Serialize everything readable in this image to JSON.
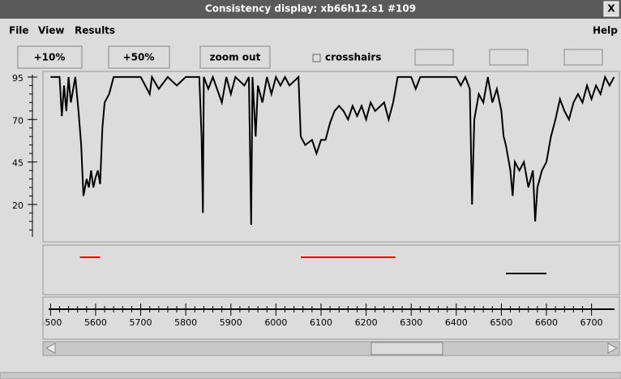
{
  "window": {
    "title": "Consistency display: xb66h12.s1 #109",
    "close": "X"
  },
  "menu": {
    "items": [
      "File",
      "View",
      "Results"
    ],
    "help": "Help"
  },
  "toolbar": {
    "buttons": [
      "+10%",
      "+50%",
      "zoom out"
    ],
    "checkbox": "crosshairs"
  },
  "chart_data": {
    "type": "line",
    "color": "#000000",
    "x": [
      5500,
      5520,
      5525,
      5530,
      5535,
      5540,
      5545,
      5555,
      5562,
      5568,
      5573,
      5580,
      5585,
      5590,
      5595,
      5600,
      5605,
      5610,
      5615,
      5620,
      5630,
      5640,
      5650,
      5700,
      5720,
      5725,
      5740,
      5760,
      5780,
      5800,
      5830,
      5835,
      5838,
      5840,
      5850,
      5860,
      5880,
      5890,
      5900,
      5910,
      5930,
      5940,
      5945,
      5948,
      5955,
      5960,
      5970,
      5980,
      5990,
      6000,
      6010,
      6020,
      6030,
      6050,
      6055,
      6065,
      6080,
      6090,
      6100,
      6110,
      6120,
      6130,
      6140,
      6150,
      6160,
      6170,
      6180,
      6190,
      6200,
      6210,
      6220,
      6240,
      6250,
      6260,
      6270,
      6300,
      6310,
      6320,
      6400,
      6410,
      6420,
      6430,
      6435,
      6440,
      6450,
      6460,
      6470,
      6480,
      6490,
      6500,
      6505,
      6510,
      6520,
      6525,
      6530,
      6540,
      6550,
      6560,
      6570,
      6575,
      6580,
      6590,
      6600,
      6610,
      6620,
      6630,
      6640,
      6650,
      6660,
      6670,
      6680,
      6690,
      6700,
      6710,
      6720,
      6730,
      6740,
      6750
    ],
    "values": [
      95,
      95,
      72,
      90,
      75,
      95,
      80,
      95,
      75,
      55,
      25,
      35,
      30,
      40,
      30,
      36,
      40,
      32,
      65,
      80,
      85,
      95,
      95,
      95,
      85,
      95,
      88,
      95,
      90,
      95,
      95,
      60,
      15,
      95,
      88,
      95,
      80,
      95,
      85,
      95,
      90,
      95,
      8,
      95,
      60,
      90,
      80,
      95,
      85,
      95,
      90,
      95,
      90,
      95,
      60,
      55,
      58,
      50,
      58,
      58,
      68,
      75,
      78,
      75,
      70,
      78,
      72,
      78,
      70,
      80,
      75,
      80,
      70,
      80,
      95,
      95,
      88,
      95,
      95,
      90,
      95,
      88,
      20,
      70,
      85,
      80,
      95,
      80,
      88,
      75,
      60,
      55,
      40,
      25,
      45,
      40,
      45,
      30,
      40,
      10,
      30,
      40,
      45,
      60,
      70,
      82,
      75,
      70,
      80,
      85,
      80,
      90,
      82,
      90,
      85,
      95,
      90,
      95
    ],
    "xlim": [
      5494,
      6751
    ],
    "ylim": [
      -2,
      98.3
    ],
    "xticks": [
      5500,
      5600,
      5700,
      5800,
      5900,
      6000,
      6100,
      6200,
      6300,
      6400,
      6500,
      6600,
      6700
    ],
    "yticks": [
      95,
      70,
      45,
      20
    ],
    "segments": [
      {
        "color": "#ff0000",
        "start": 5565,
        "end": 5610,
        "row": 0
      },
      {
        "color": "#ff0000",
        "start": 6055,
        "end": 6265,
        "row": 0
      },
      {
        "color": "#000000",
        "start": 6510,
        "end": 6600,
        "row": 1
      }
    ]
  }
}
